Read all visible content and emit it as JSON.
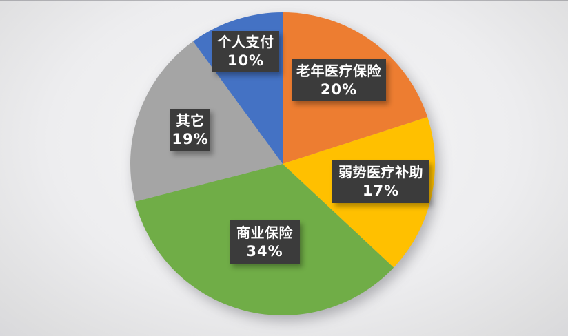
{
  "background": {
    "center_color": "#f6f6f7",
    "edge_color": "#d6d6da"
  },
  "chart_data": {
    "type": "pie",
    "title": "",
    "legend": "none",
    "start_angle_deg": 0,
    "direction": "clockwise",
    "categories": [
      "老年医疗保险",
      "弱势医疗补助",
      "商业保险",
      "其它",
      "个人支付"
    ],
    "values": [
      20,
      17,
      34,
      19,
      10
    ],
    "label_style": {
      "box_color": "#3b3b3b",
      "text_color": "#ffffff"
    },
    "slices": [
      {
        "label": "老年医疗保险",
        "value": 20,
        "percent_label": "20%",
        "color": "#ED7D31"
      },
      {
        "label": "弱势医疗补助",
        "value": 17,
        "percent_label": "17%",
        "color": "#FFC000"
      },
      {
        "label": "商业保险",
        "value": 34,
        "percent_label": "34%",
        "color": "#70AD47"
      },
      {
        "label": "其它",
        "value": 19,
        "percent_label": "19%",
        "color": "#A5A5A5"
      },
      {
        "label": "个人支付",
        "value": 10,
        "percent_label": "10%",
        "color": "#4472C4"
      }
    ]
  }
}
